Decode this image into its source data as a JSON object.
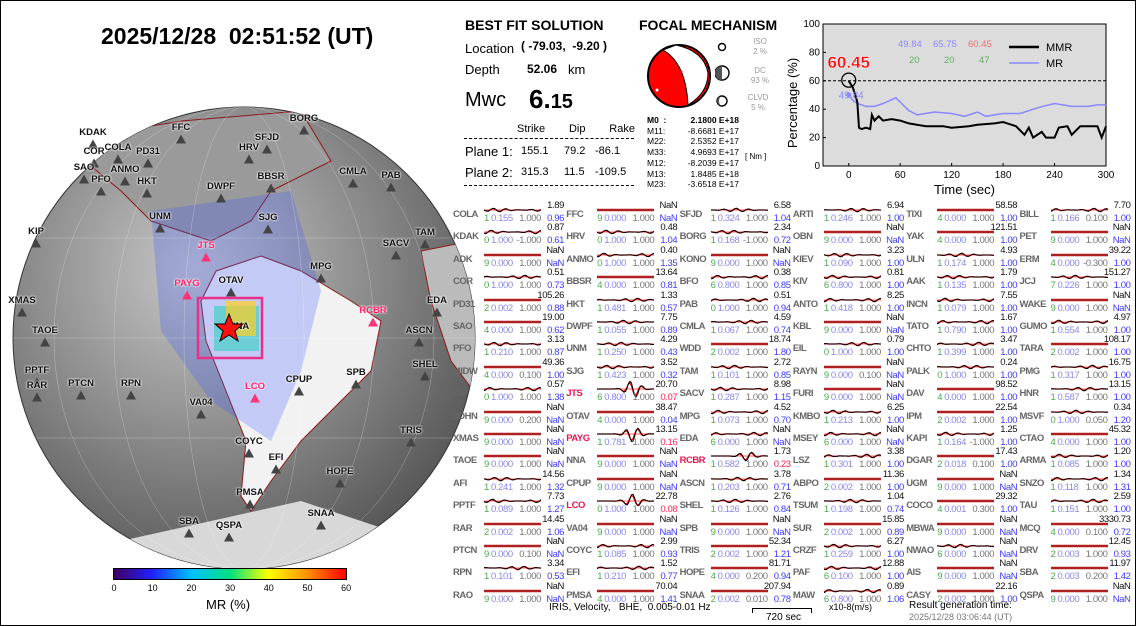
{
  "title": "2025/12/28  02:51:52 (UT)",
  "best_fit": {
    "heading": "BEST FIT SOLUTION",
    "location_label": "Location",
    "location_value": "( -79.03,  -9.20 )",
    "depth_label": "Depth",
    "depth_value": "52.06",
    "depth_unit": "km",
    "mw_label": "Mwc",
    "mw_int": "6.",
    "mw_dec": "15",
    "cols": [
      "Strike",
      "Dip",
      "Rake"
    ],
    "planes": [
      {
        "label": "Plane 1:",
        "strike": "155.1",
        "dip": "79.2",
        "rake": "-86.1"
      },
      {
        "label": "Plane 2:",
        "strike": "315.3",
        "dip": "11.5",
        "rake": "-109.5"
      }
    ]
  },
  "focal": {
    "heading": "FOCAL MECHANISM",
    "iso_label": "ISO",
    "iso_value": "2  %",
    "dc_label": "DC",
    "dc_value": "93 %",
    "clvd_label": "CLVD",
    "clvd_value": "5  %",
    "unit": "[ Nm ]",
    "tensor": [
      {
        "k": "M0  :",
        "v": "2.1800 E+18"
      },
      {
        "k": "M11:",
        "v": "-8.6681 E+17"
      },
      {
        "k": "M22:",
        "v": "2.5352 E+17"
      },
      {
        "k": "M33:",
        "v": "4.9693 E+17"
      },
      {
        "k": "M12:",
        "v": "-8.2039 E+17"
      },
      {
        "k": "M13:",
        "v": "1.8485 E+18"
      },
      {
        "k": "M23:",
        "v": "-3.6518 E+17"
      }
    ]
  },
  "chart_data": {
    "type": "line",
    "xlabel": "Time (sec)",
    "ylabel": "Percentage (%)",
    "xlim": [
      -30,
      300
    ],
    "ylim": [
      0,
      100
    ],
    "xticks": [
      "0",
      "60",
      "120",
      "180",
      "240",
      "300"
    ],
    "yticks": [
      "0",
      "20",
      "40",
      "60",
      "80",
      "100"
    ],
    "threshold": 60,
    "peak_label": "60.45",
    "mr_start_label": "49.84",
    "legend": [
      "MMR",
      "MR"
    ],
    "legend_placement": "top-right",
    "stats_top": [
      "49.84",
      "65.75",
      "60.45"
    ],
    "stats_bottom": [
      "20",
      "20",
      "47"
    ],
    "series": [
      {
        "name": "MMR",
        "color": "#000000",
        "x": [
          0,
          5,
          10,
          12,
          15,
          20,
          25,
          27,
          30,
          35,
          40,
          50,
          60,
          70,
          90,
          110,
          120,
          140,
          150,
          170,
          180,
          195,
          205,
          210,
          215,
          225,
          230,
          240,
          245,
          255,
          260,
          270,
          290,
          295,
          300
        ],
        "y": [
          60,
          55,
          45,
          27,
          26,
          27,
          26,
          36,
          32,
          35,
          32,
          33,
          32,
          30,
          28,
          28,
          27,
          28,
          29,
          30,
          31,
          28,
          22,
          27,
          20,
          24,
          20,
          20,
          27,
          28,
          22,
          28,
          28,
          20,
          28
        ]
      },
      {
        "name": "MR",
        "color": "#8888ff",
        "x": [
          0,
          5,
          10,
          20,
          30,
          40,
          55,
          60,
          70,
          80,
          100,
          120,
          135,
          150,
          160,
          180,
          200,
          220,
          240,
          260,
          280,
          290,
          300
        ],
        "y": [
          50,
          46,
          44,
          42,
          42,
          44,
          48,
          45,
          39,
          36,
          38,
          37,
          35,
          38,
          35,
          37,
          37,
          41,
          44,
          42,
          42,
          43,
          43
        ]
      }
    ]
  },
  "stations": [
    [
      "COLA",
      "1.89",
      "1",
      "0.155",
      "1.000",
      "0.96"
    ],
    [
      "KDAK",
      "0.87",
      "0",
      "1.000",
      "-1.000",
      "0.61"
    ],
    [
      "ADK",
      "NaN",
      "9",
      "0.000",
      "1.000",
      "NaN"
    ],
    [
      "COR",
      "0.51",
      "0",
      "1.000",
      "1.000",
      "0.73"
    ],
    [
      "PD31",
      "105.26",
      "2",
      "0.002",
      "1.000",
      "0.88"
    ],
    [
      "SAO",
      "19.00",
      "4",
      "0.000",
      "1.000",
      "0.62"
    ],
    [
      "PFO",
      "3.13",
      "1",
      "0.210",
      "1.000",
      "0.87"
    ],
    [
      "MIDW",
      "49.36",
      "4",
      "0.000",
      "0.100",
      "1.00"
    ],
    [
      "KIP",
      "0.57",
      "0",
      "1.000",
      "1.000",
      "1.38"
    ],
    [
      "JOHN",
      "NaN",
      "9",
      "0.000",
      "0.200",
      "NaN"
    ],
    [
      "XMAS",
      "NaN",
      "9",
      "0.000",
      "1.000",
      "NaN"
    ],
    [
      "TAOE",
      "NaN",
      "9",
      "0.000",
      "1.000",
      "NaN"
    ],
    [
      "AFI",
      "14.56",
      "1",
      "0.241",
      "1.000",
      "1.32"
    ],
    [
      "PPTF",
      "7.73",
      "1",
      "0.089",
      "1.000",
      "1.27"
    ],
    [
      "RAR",
      "14.45",
      "2",
      "0.002",
      "1.000",
      "1.06"
    ],
    [
      "PTCN",
      "NaN",
      "9",
      "0.000",
      "0.100",
      "NaN"
    ],
    [
      "RPN",
      "3.34",
      "1",
      "0.101",
      "1.000",
      "0.53"
    ],
    [
      "RAO",
      "NaN",
      "9",
      "0.000",
      "1.000",
      "NaN"
    ],
    [
      "FFC",
      "NaN",
      "9",
      "0.000",
      "1.000",
      "NaN"
    ],
    [
      "HRV",
      "0.48",
      "0",
      "1.000",
      "1.000",
      "1.04"
    ],
    [
      "ANMO",
      "0.40",
      "0",
      "1.000",
      "1.000",
      "1.35"
    ],
    [
      "BBSR",
      "13.64",
      "4",
      "0.000",
      "1.000",
      "0.81"
    ],
    [
      "HKT",
      "1.33",
      "1",
      "0.481",
      "1.000",
      "0.57"
    ],
    [
      "DWPF",
      "7.75",
      "1",
      "0.055",
      "1.000",
      "0.89"
    ],
    [
      "UNM",
      "4.29",
      "1",
      "0.250",
      "1.000",
      "0.43"
    ],
    [
      "SJG",
      "3.52",
      "1",
      "0.423",
      "1.000",
      "0.32"
    ],
    [
      "JTS",
      "20.70",
      "6",
      "0.800",
      "1.000",
      "0.07"
    ],
    [
      "OTAV",
      "38.47",
      "4",
      "0.000",
      "1.000",
      "0.04"
    ],
    [
      "PAYG",
      "13.15",
      "1",
      "0.781",
      "1.000",
      "0.16"
    ],
    [
      "NNA",
      "NaN",
      "9",
      "0.000",
      "1.000",
      "NaN"
    ],
    [
      "CPUP",
      "NaN",
      "9",
      "0.000",
      "1.000",
      "NaN"
    ],
    [
      "LCO",
      "22.78",
      "0",
      "1.000",
      "1.000",
      "0.08"
    ],
    [
      "VA04",
      "NaN",
      "9",
      "0.000",
      "1.000",
      "NaN"
    ],
    [
      "COYC",
      "2.99",
      "1",
      "0.085",
      "1.000",
      "0.93"
    ],
    [
      "EFI",
      "1.52",
      "1",
      "0.210",
      "1.000",
      "0.77"
    ],
    [
      "PMSA",
      "70.04",
      "4",
      "0.000",
      "1.000",
      "1.41"
    ],
    [
      "SFJD",
      "6.58",
      "1",
      "0.324",
      "1.000",
      "1.04"
    ],
    [
      "BORG",
      "2.34",
      "1",
      "0.168",
      "-1.000",
      "0.72"
    ],
    [
      "KONO",
      "NaN",
      "9",
      "0.000",
      "1.000",
      "NaN"
    ],
    [
      "BFO",
      "0.38",
      "6",
      "0.800",
      "1.000",
      "0.85"
    ],
    [
      "PAB",
      "0.51",
      "0",
      "1.000",
      "1.000",
      "0.94"
    ],
    [
      "CMLA",
      "4.59",
      "1",
      "0.067",
      "1.000",
      "0.74"
    ],
    [
      "WDD",
      "18.74",
      "2",
      "0.002",
      "1.000",
      "1.80"
    ],
    [
      "TAM",
      "2.72",
      "1",
      "0.101",
      "1.000",
      "0.85"
    ],
    [
      "SACV",
      "8.98",
      "1",
      "0.287",
      "1.000",
      "1.15"
    ],
    [
      "MPG",
      "4.52",
      "1",
      "0.073",
      "1.000",
      "0.70"
    ],
    [
      "EDA",
      "NaN",
      "6",
      "0.000",
      "1.000",
      "NaN"
    ],
    [
      "RCBR",
      "1.73",
      "1",
      "0.582",
      "1.000",
      "0.23"
    ],
    [
      "ASCN",
      "3.78",
      "1",
      "0.203",
      "1.000",
      "0.71"
    ],
    [
      "SHEL",
      "2.76",
      "1",
      "0.126",
      "1.000",
      "0.84"
    ],
    [
      "SPB",
      "NaN",
      "9",
      "0.000",
      "1.000",
      "NaN"
    ],
    [
      "TRIS",
      "52.34",
      "2",
      "0.002",
      "1.000",
      "1.21"
    ],
    [
      "HOPE",
      "81.71",
      "4",
      "0.000",
      "0.200",
      "0.94"
    ],
    [
      "SNAA",
      "207.94",
      "2",
      "0.002",
      "0.010",
      "0.78"
    ],
    [
      "ARTI",
      "6.94",
      "1",
      "0.246",
      "1.000",
      "1.00"
    ],
    [
      "OBN",
      "NaN",
      "9",
      "0.000",
      "1.000",
      "NaN"
    ],
    [
      "KIEV",
      "3.23",
      "1",
      "0.090",
      "1.000",
      "1.00"
    ],
    [
      "KIV",
      "0.81",
      "6",
      "0.800",
      "1.000",
      "1.00"
    ],
    [
      "ANTO",
      "8.25",
      "1",
      "0.418",
      "1.000",
      "1.00"
    ],
    [
      "KBL",
      "NaN",
      "9",
      "0.000",
      "1.000",
      "NaN"
    ],
    [
      "EIL",
      "0.79",
      "0",
      "1.000",
      "1.000",
      "1.00"
    ],
    [
      "RAYN",
      "NaN",
      "9",
      "0.000",
      "0.100",
      "NaN"
    ],
    [
      "FURI",
      "NaN",
      "9",
      "0.000",
      "1.000",
      "NaN"
    ],
    [
      "KMBO",
      "6.25",
      "1",
      "0.213",
      "1.000",
      "1.00"
    ],
    [
      "MSEY",
      "NaN",
      "6",
      "0.000",
      "1.000",
      "NaN"
    ],
    [
      "LSZ",
      "3.38",
      "1",
      "0.301",
      "1.000",
      "1.00"
    ],
    [
      "ABPO",
      "11.36",
      "2",
      "0.002",
      "1.000",
      "1.00"
    ],
    [
      "TSUM",
      "1.04",
      "1",
      "0.198",
      "1.000",
      "0.74"
    ],
    [
      "SUR",
      "15.85",
      "2",
      "0.002",
      "1.000",
      "0.89"
    ],
    [
      "CRZF",
      "6.27",
      "1",
      "0.259",
      "1.000",
      "1.00"
    ],
    [
      "PAF",
      "12.88",
      "6",
      "0.100",
      "1.000",
      "1.00"
    ],
    [
      "MAW",
      "0.89",
      "6",
      "0.800",
      "1.000",
      "1.06"
    ],
    [
      "TIXI",
      "58.58",
      "4",
      "0.000",
      "1.000",
      "1.00"
    ],
    [
      "YAK",
      "121.51",
      "4",
      "0.000",
      "1.000",
      "1.00"
    ],
    [
      "ULN",
      "4.93",
      "1",
      "0.174",
      "1.000",
      "1.00"
    ],
    [
      "AAK",
      "1.79",
      "1",
      "0.135",
      "1.000",
      "1.00"
    ],
    [
      "INCN",
      "7.55",
      "1",
      "0.079",
      "1.000",
      "1.00"
    ],
    [
      "TATO",
      "1.67",
      "1",
      "0.790",
      "1.000",
      "1.00"
    ],
    [
      "CHTO",
      "3.47",
      "1",
      "0.399",
      "1.000",
      "1.00"
    ],
    [
      "PALK",
      "0.24",
      "0",
      "1.000",
      "1.000",
      "1.00"
    ],
    [
      "DAV",
      "98.52",
      "4",
      "0.000",
      "1.000",
      "1.00"
    ],
    [
      "IPM",
      "22.54",
      "2",
      "0.002",
      "1.000",
      "1.00"
    ],
    [
      "KAPI",
      "1.25",
      "1",
      "0.164",
      "-1.000",
      "1.00"
    ],
    [
      "DGAR",
      "17.43",
      "2",
      "0.018",
      "0.100",
      "1.00"
    ],
    [
      "UGM",
      "NaN",
      "9",
      "0.000",
      "1.000",
      "NaN"
    ],
    [
      "COCO",
      "29.32",
      "4",
      "0.001",
      "0.300",
      "1.00"
    ],
    [
      "MBWA",
      "NaN",
      "9",
      "0.000",
      "1.000",
      "NaN"
    ],
    [
      "NWAO",
      "NaN",
      "6",
      "0.000",
      "1.000",
      "NaN"
    ],
    [
      "AIS",
      "NaN",
      "9",
      "0.000",
      "1.000",
      "NaN"
    ],
    [
      "CASY",
      "22.16",
      "2",
      "0.002",
      "1.000",
      "1.00"
    ],
    [
      "BILL",
      "7.70",
      "1",
      "0.166",
      "0.100",
      "1.00"
    ],
    [
      "PET",
      "NaN",
      "9",
      "0.000",
      "1.000",
      "NaN"
    ],
    [
      "ERM",
      "39.22",
      "4",
      "0.000",
      "-0.300",
      "1.00"
    ],
    [
      "JCJ",
      "151.27",
      "7",
      "0.226",
      "1.000",
      "1.00"
    ],
    [
      "WAKE",
      "NaN",
      "9",
      "0.000",
      "1.000",
      "NaN"
    ],
    [
      "GUMO",
      "4.97",
      "1",
      "0.554",
      "1.000",
      "1.00"
    ],
    [
      "TARA",
      "108.17",
      "2",
      "0.002",
      "1.000",
      "1.00"
    ],
    [
      "PMG",
      "16.75",
      "1",
      "0.317",
      "1.000",
      "1.00"
    ],
    [
      "HNR",
      "13.15",
      "1",
      "0.587",
      "1.000",
      "1.00"
    ],
    [
      "MSVF",
      "0.34",
      "0",
      "1.000",
      "0.050",
      "1.20"
    ],
    [
      "CTAO",
      "45.32",
      "4",
      "0.000",
      "1.000",
      "1.00"
    ],
    [
      "ARMA",
      "1.20",
      "1",
      "0.085",
      "1.000",
      "1.00"
    ],
    [
      "SNZO",
      "1.34",
      "1",
      "0.118",
      "1.000",
      "1.31"
    ],
    [
      "TAU",
      "2.59",
      "1",
      "0.151",
      "1.000",
      "1.00"
    ],
    [
      "MCQ",
      "3330.73",
      "4",
      "0.000",
      "0.100",
      "0.72"
    ],
    [
      "DRV",
      "12.45",
      "2",
      "0.003",
      "1.000",
      "0.93"
    ],
    [
      "SBA",
      "11.97",
      "2",
      "0.003",
      "0.200",
      "1.42"
    ],
    [
      "QSPA",
      "NaN",
      "9",
      "0.000",
      "1.000",
      "NaN"
    ]
  ],
  "highlight": [
    "JTS",
    "PAYG",
    "LCO",
    "RCBR"
  ],
  "footer": {
    "source": "IRIS, Velocity,   BHE,  0.005-0.01 Hz",
    "scale_time": "720 sec",
    "scale_amp": "x10-8(m/s)",
    "gen_label": "Result generation time:",
    "gen_time": "2025/12/28 03:06:44 (UT)"
  },
  "map": {
    "stations": [
      "COLA",
      "FFC",
      "SFJD",
      "BORG",
      "KDAK",
      "COR",
      "PD31",
      "HRV",
      "SAO",
      "ANMO",
      "PFO",
      "HKT",
      "DWPF",
      "BBSR",
      "CMLA",
      "PAB",
      "UNM",
      "SJG",
      "KIP",
      "JTS",
      "TAM",
      "SACV",
      "MPG",
      "OTAV",
      "PAYG",
      "XMAS",
      "EDA",
      "RCBR",
      "TAOE",
      "ASCN",
      "SHEL",
      "PPTF",
      "RAR",
      "PTCN",
      "RPN",
      "SPB",
      "CPUP",
      "LCO",
      "VA04",
      "TRIS",
      "COYC",
      "EFI",
      "HOPE",
      "PMSA",
      "SNAA",
      "SBA",
      "QSPA",
      "NNA"
    ],
    "colorbar": {
      "label": "MR (%)",
      "ticks": [
        "0",
        "10",
        "20",
        "30",
        "40",
        "50",
        "60"
      ]
    }
  }
}
